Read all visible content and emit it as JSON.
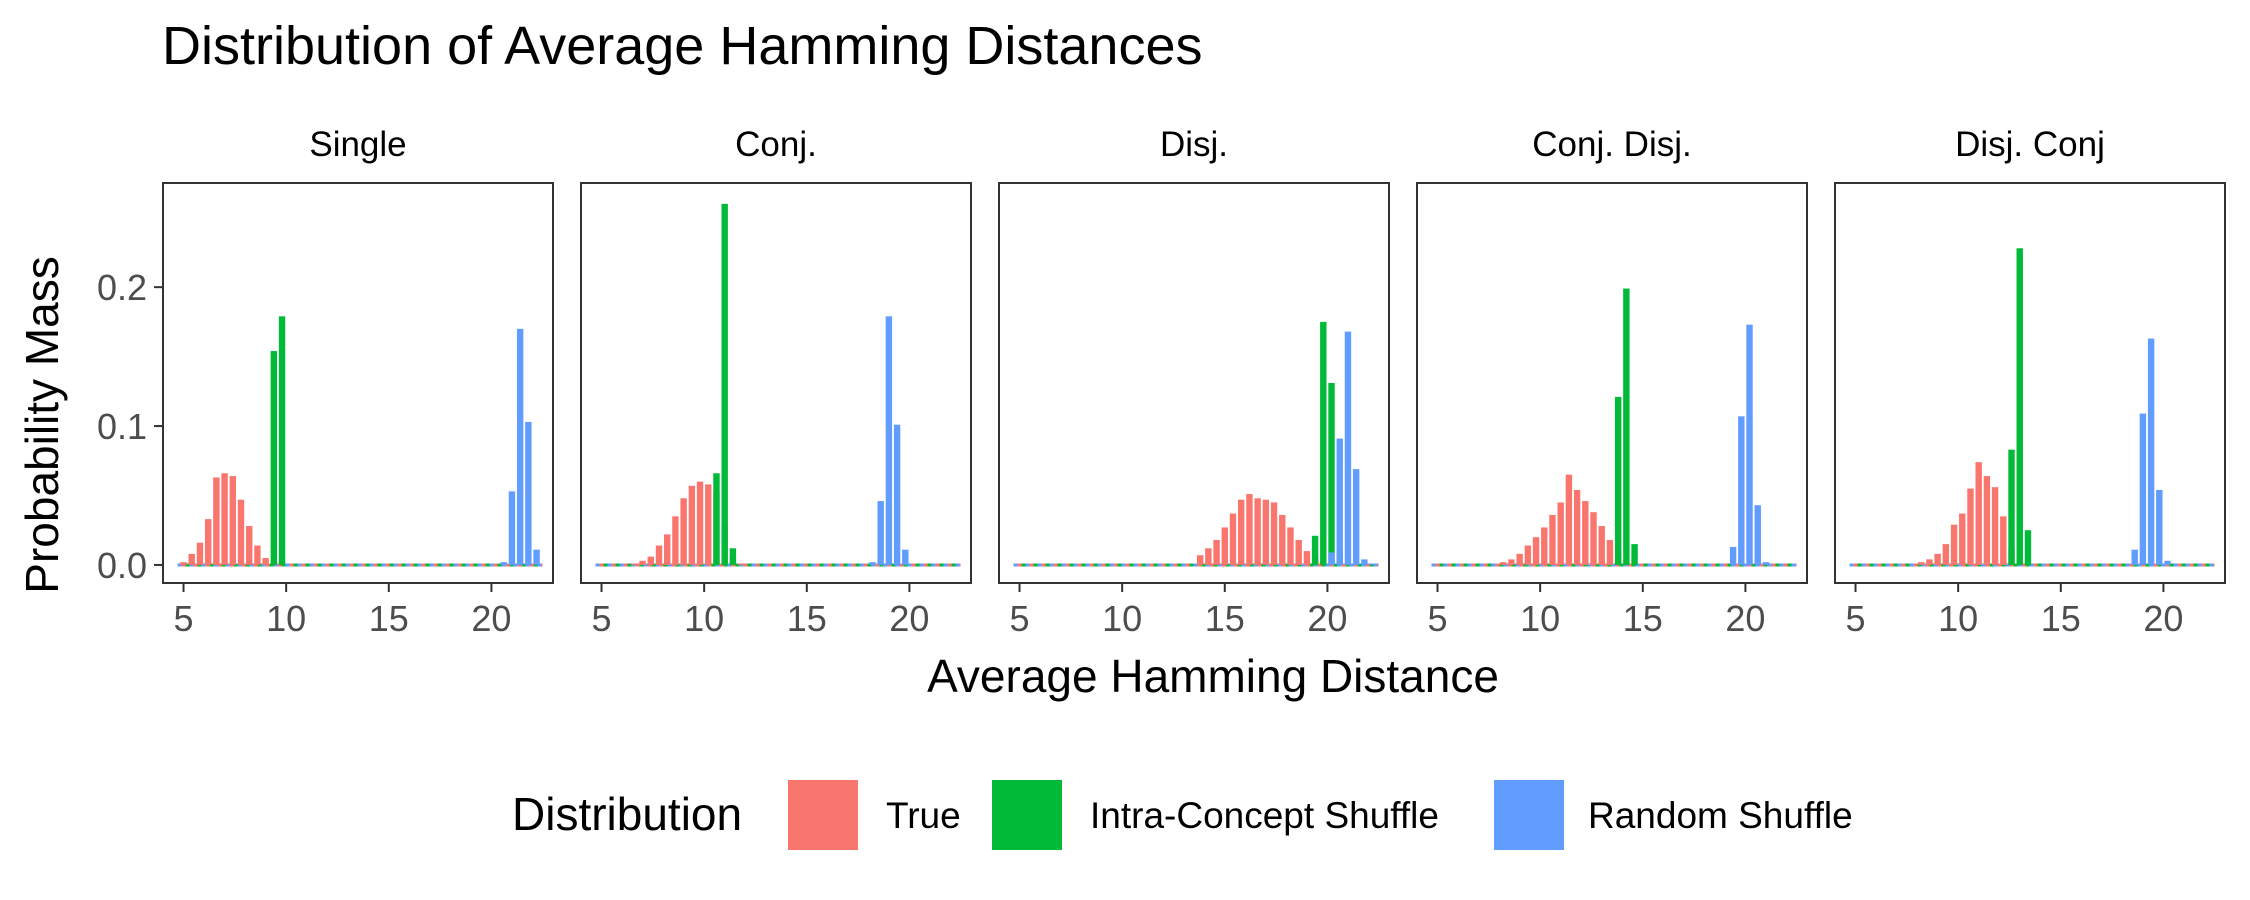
{
  "chart_data": {
    "type": "bar",
    "title": "Distribution of Average Hamming Distances",
    "xlabel": "Average Hamming Distance",
    "ylabel": "Probability Mass",
    "xlim": [
      4.0,
      23.0
    ],
    "ylim": [
      -0.013,
      0.275
    ],
    "xticks": [
      5,
      10,
      15,
      20
    ],
    "yticks": [
      0.0,
      0.1,
      0.2
    ],
    "ytick_labels": [
      "0.0",
      "0.1",
      "0.2"
    ],
    "bar_width": 0.4,
    "grid": false,
    "legend": {
      "title": "Distribution",
      "position": "bottom",
      "entries": [
        "True",
        "Intra-Concept Shuffle",
        "Random Shuffle"
      ]
    },
    "colors": {
      "True": "#F8766D",
      "Intra-Concept Shuffle": "#00BA38",
      "Random Shuffle": "#619CFF"
    },
    "panels": [
      {
        "label": "Single",
        "series": [
          {
            "name": "True",
            "points": [
              [
                5.0,
                0.002
              ],
              [
                5.4,
                0.008
              ],
              [
                5.8,
                0.016
              ],
              [
                6.2,
                0.033
              ],
              [
                6.6,
                0.063
              ],
              [
                7.0,
                0.066
              ],
              [
                7.4,
                0.064
              ],
              [
                7.8,
                0.047
              ],
              [
                8.2,
                0.028
              ],
              [
                8.6,
                0.014
              ],
              [
                9.0,
                0.005
              ],
              [
                9.4,
                0.002
              ]
            ]
          },
          {
            "name": "Intra-Concept Shuffle",
            "points": [
              [
                9.4,
                0.154
              ],
              [
                9.8,
                0.179
              ]
            ]
          },
          {
            "name": "Random Shuffle",
            "points": [
              [
                20.6,
                0.002
              ],
              [
                21.0,
                0.053
              ],
              [
                21.4,
                0.17
              ],
              [
                21.8,
                0.103
              ],
              [
                22.2,
                0.011
              ]
            ]
          }
        ]
      },
      {
        "label": "Conj.",
        "series": [
          {
            "name": "True",
            "points": [
              [
                6.6,
                0.001
              ],
              [
                7.0,
                0.003
              ],
              [
                7.4,
                0.006
              ],
              [
                7.8,
                0.014
              ],
              [
                8.2,
                0.022
              ],
              [
                8.6,
                0.035
              ],
              [
                9.0,
                0.048
              ],
              [
                9.4,
                0.057
              ],
              [
                9.8,
                0.06
              ],
              [
                10.2,
                0.058
              ],
              [
                10.6,
                0.052
              ],
              [
                11.0,
                0.03
              ],
              [
                11.4,
                0.006
              ],
              [
                11.8,
                0.001
              ]
            ]
          },
          {
            "name": "Intra-Concept Shuffle",
            "points": [
              [
                10.6,
                0.066
              ],
              [
                11.0,
                0.26
              ],
              [
                11.4,
                0.012
              ]
            ]
          },
          {
            "name": "Random Shuffle",
            "points": [
              [
                18.2,
                0.002
              ],
              [
                18.6,
                0.046
              ],
              [
                19.0,
                0.179
              ],
              [
                19.4,
                0.101
              ],
              [
                19.8,
                0.011
              ]
            ]
          }
        ]
      },
      {
        "label": "Disj.",
        "series": [
          {
            "name": "True",
            "points": [
              [
                13.8,
                0.007
              ],
              [
                14.2,
                0.012
              ],
              [
                14.6,
                0.018
              ],
              [
                15.0,
                0.027
              ],
              [
                15.4,
                0.037
              ],
              [
                15.8,
                0.047
              ],
              [
                16.2,
                0.051
              ],
              [
                16.6,
                0.048
              ],
              [
                17.0,
                0.047
              ],
              [
                17.4,
                0.045
              ],
              [
                17.8,
                0.036
              ],
              [
                18.2,
                0.027
              ],
              [
                18.6,
                0.018
              ],
              [
                19.0,
                0.01
              ],
              [
                19.4,
                0.006
              ],
              [
                19.8,
                0.003
              ]
            ]
          },
          {
            "name": "Intra-Concept Shuffle",
            "points": [
              [
                19.4,
                0.021
              ],
              [
                19.8,
                0.175
              ],
              [
                20.2,
                0.131
              ],
              [
                20.6,
                0.012
              ]
            ]
          },
          {
            "name": "Random Shuffle",
            "points": [
              [
                20.2,
                0.009
              ],
              [
                20.6,
                0.091
              ],
              [
                21.0,
                0.168
              ],
              [
                21.4,
                0.069
              ],
              [
                21.8,
                0.004
              ],
              [
                22.2,
                0.001
              ]
            ]
          }
        ]
      },
      {
        "label": "Conj. Disj.",
        "series": [
          {
            "name": "True",
            "points": [
              [
                8.2,
                0.002
              ],
              [
                8.6,
                0.004
              ],
              [
                9.0,
                0.008
              ],
              [
                9.4,
                0.014
              ],
              [
                9.8,
                0.02
              ],
              [
                10.2,
                0.027
              ],
              [
                10.6,
                0.036
              ],
              [
                11.0,
                0.045
              ],
              [
                11.4,
                0.065
              ],
              [
                11.8,
                0.054
              ],
              [
                12.2,
                0.046
              ],
              [
                12.6,
                0.038
              ],
              [
                13.0,
                0.028
              ],
              [
                13.4,
                0.018
              ],
              [
                13.8,
                0.009
              ]
            ]
          },
          {
            "name": "Intra-Concept Shuffle",
            "points": [
              [
                13.8,
                0.121
              ],
              [
                14.2,
                0.199
              ],
              [
                14.6,
                0.015
              ]
            ]
          },
          {
            "name": "Random Shuffle",
            "points": [
              [
                19.4,
                0.013
              ],
              [
                19.8,
                0.107
              ],
              [
                20.2,
                0.173
              ],
              [
                20.6,
                0.043
              ],
              [
                21.0,
                0.002
              ]
            ]
          }
        ]
      },
      {
        "label": "Disj. Conj",
        "series": [
          {
            "name": "True",
            "points": [
              [
                8.2,
                0.002
              ],
              [
                8.6,
                0.004
              ],
              [
                9.0,
                0.008
              ],
              [
                9.4,
                0.015
              ],
              [
                9.8,
                0.029
              ],
              [
                10.2,
                0.037
              ],
              [
                10.6,
                0.055
              ],
              [
                11.0,
                0.074
              ],
              [
                11.4,
                0.064
              ],
              [
                11.8,
                0.056
              ],
              [
                12.2,
                0.035
              ],
              [
                12.6,
                0.012
              ]
            ]
          },
          {
            "name": "Intra-Concept Shuffle",
            "points": [
              [
                12.6,
                0.083
              ],
              [
                13.0,
                0.228
              ],
              [
                13.4,
                0.025
              ]
            ]
          },
          {
            "name": "Random Shuffle",
            "points": [
              [
                18.6,
                0.011
              ],
              [
                19.0,
                0.109
              ],
              [
                19.4,
                0.163
              ],
              [
                19.8,
                0.054
              ],
              [
                20.2,
                0.003
              ]
            ]
          }
        ]
      }
    ]
  }
}
